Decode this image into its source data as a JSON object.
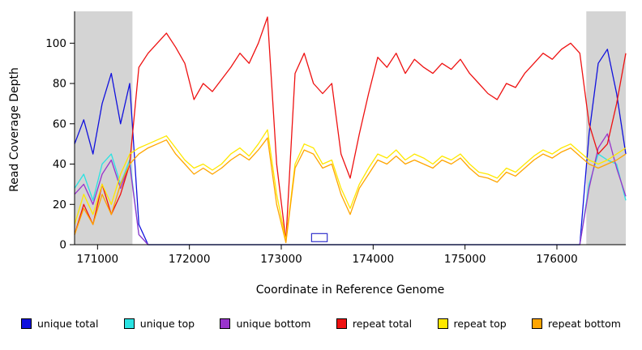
{
  "chart_data": {
    "type": "line",
    "title": "",
    "xlabel": "Coordinate in Reference Genome",
    "ylabel": "Read Coverage Depth",
    "xlim": [
      170750,
      176750
    ],
    "ylim": [
      0,
      115
    ],
    "xticks": [
      171000,
      172000,
      173000,
      174000,
      175000,
      176000
    ],
    "yticks": [
      0,
      20,
      40,
      60,
      80,
      100
    ],
    "x0": 170750,
    "dx": 100,
    "shade_color": "#d4d4d4",
    "shaded_regions": [
      {
        "x1": 170750,
        "x2": 171380
      },
      {
        "x1": 176320,
        "x2": 176750
      }
    ],
    "annotation_box": {
      "x1": 173330,
      "x2": 173500,
      "y1": 1.5,
      "y2": 5.5,
      "color": "#3333cc"
    },
    "series": [
      {
        "label": "unique total",
        "color": "#1111dd",
        "values": [
          50,
          62,
          45,
          70,
          85,
          60,
          80,
          10,
          0,
          0,
          0,
          0,
          0,
          0,
          0,
          0,
          0,
          0,
          0,
          0,
          0,
          0,
          0,
          0,
          0,
          0,
          0,
          0,
          0,
          0,
          0,
          0,
          0,
          0,
          0,
          0,
          0,
          0,
          0,
          0,
          0,
          0,
          0,
          0,
          0,
          0,
          0,
          0,
          0,
          0,
          0,
          0,
          0,
          0,
          0,
          0,
          55,
          90,
          97,
          75,
          45
        ]
      },
      {
        "label": "unique top",
        "color": "#2ae2e2",
        "values": [
          28,
          35,
          22,
          40,
          45,
          30,
          42,
          5,
          0,
          0,
          0,
          0,
          0,
          0,
          0,
          0,
          0,
          0,
          0,
          0,
          0,
          0,
          0,
          0,
          0,
          0,
          0,
          0,
          0,
          0,
          0,
          0,
          0,
          0,
          0,
          0,
          0,
          0,
          0,
          0,
          0,
          0,
          0,
          0,
          0,
          0,
          0,
          0,
          0,
          0,
          0,
          0,
          0,
          0,
          0,
          0,
          30,
          45,
          42,
          40,
          22
        ]
      },
      {
        "label": "unique bottom",
        "color": "#9933cc",
        "values": [
          25,
          30,
          20,
          35,
          42,
          28,
          40,
          5,
          0,
          0,
          0,
          0,
          0,
          0,
          0,
          0,
          0,
          0,
          0,
          0,
          0,
          0,
          0,
          0,
          0,
          0,
          0,
          0,
          0,
          0,
          0,
          0,
          0,
          0,
          0,
          0,
          0,
          0,
          0,
          0,
          0,
          0,
          0,
          0,
          0,
          0,
          0,
          0,
          0,
          0,
          0,
          0,
          0,
          0,
          0,
          0,
          28,
          48,
          55,
          38,
          24
        ]
      },
      {
        "label": "repeat total",
        "color": "#ee1111",
        "values": [
          5,
          20,
          10,
          30,
          15,
          25,
          40,
          88,
          95,
          100,
          105,
          98,
          90,
          72,
          80,
          76,
          82,
          88,
          95,
          90,
          100,
          113,
          40,
          2,
          85,
          95,
          80,
          75,
          80,
          45,
          33,
          55,
          75,
          93,
          88,
          95,
          85,
          92,
          88,
          85,
          90,
          87,
          92,
          85,
          80,
          75,
          72,
          80,
          78,
          85,
          90,
          95,
          92,
          97,
          100,
          95,
          60,
          45,
          50,
          70,
          95
        ]
      },
      {
        "label": "repeat top",
        "color": "#ffe800",
        "values": [
          10,
          25,
          15,
          30,
          20,
          35,
          45,
          48,
          50,
          52,
          54,
          48,
          42,
          38,
          40,
          37,
          40,
          45,
          48,
          44,
          50,
          57,
          25,
          2,
          40,
          50,
          48,
          40,
          42,
          28,
          18,
          30,
          38,
          45,
          43,
          47,
          42,
          45,
          43,
          40,
          44,
          42,
          45,
          40,
          36,
          35,
          33,
          38,
          36,
          40,
          44,
          47,
          45,
          48,
          50,
          46,
          42,
          40,
          42,
          45,
          48
        ]
      },
      {
        "label": "repeat bottom",
        "color": "#ffa500",
        "values": [
          5,
          18,
          10,
          25,
          15,
          30,
          40,
          45,
          48,
          50,
          52,
          45,
          40,
          35,
          38,
          35,
          38,
          42,
          45,
          42,
          47,
          53,
          20,
          1,
          38,
          47,
          45,
          38,
          40,
          25,
          15,
          28,
          35,
          42,
          40,
          44,
          40,
          42,
          40,
          38,
          42,
          40,
          43,
          38,
          34,
          33,
          31,
          36,
          34,
          38,
          42,
          45,
          43,
          46,
          48,
          44,
          40,
          38,
          40,
          42,
          45
        ]
      }
    ],
    "legend_position": "bottom",
    "grid": false
  }
}
